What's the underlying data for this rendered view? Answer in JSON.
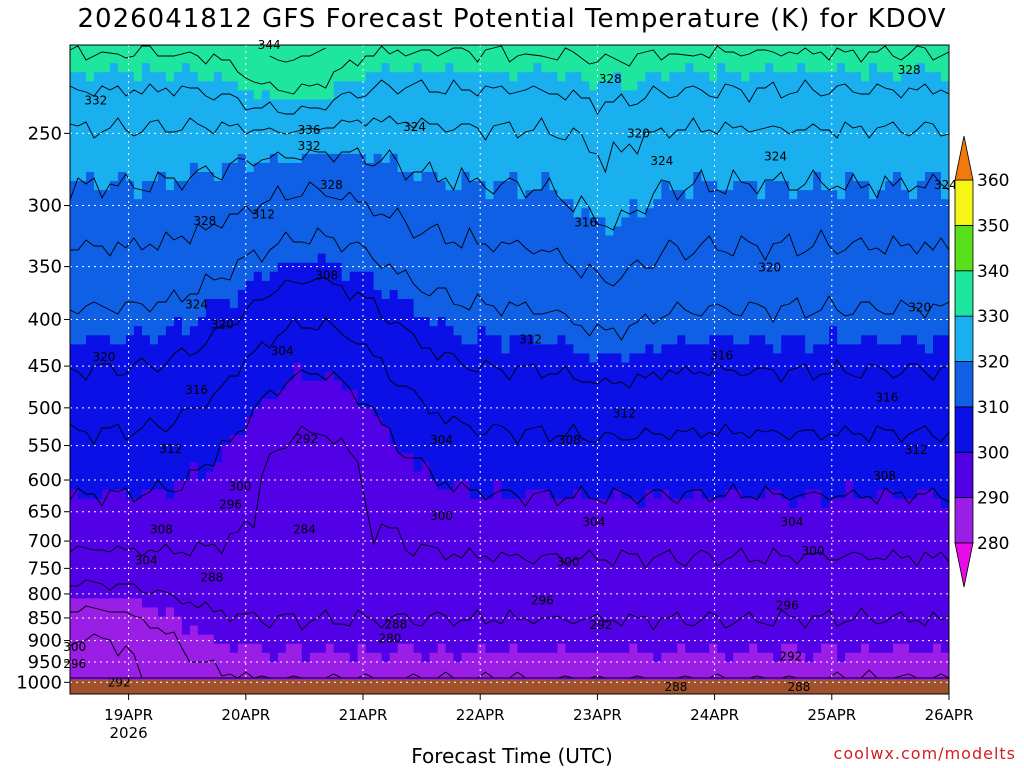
{
  "chart_data": {
    "type": "heatmap",
    "title": "2026041812 GFS Forecast Potential Temperature (K) for KDOV",
    "xlabel": "Forecast Time (UTC)",
    "ylabel": "",
    "credit": "coolwx.com/modelts",
    "x_ticks": [
      "19APR",
      "20APR",
      "21APR",
      "22APR",
      "23APR",
      "24APR",
      "25APR",
      "26APR"
    ],
    "x_year_label": "2026",
    "y_ticks": [
      250,
      300,
      350,
      400,
      450,
      500,
      550,
      600,
      650,
      700,
      750,
      800,
      850,
      900,
      950,
      1000
    ],
    "colorbar": {
      "levels": [
        280,
        290,
        300,
        310,
        320,
        330,
        340,
        350,
        360
      ],
      "colors": [
        "#e60ce6",
        "#9a1ee6",
        "#5200e6",
        "#0a10e6",
        "#1060e6",
        "#1ab0f0",
        "#1ee69e",
        "#58e01a",
        "#f5f516",
        "#f0b114",
        "#f07a0c"
      ]
    },
    "contour_labels": [
      {
        "value": 344,
        "t": 1.7,
        "p": 200
      },
      {
        "value": 336,
        "t": 2.04,
        "p": 248
      },
      {
        "value": 332,
        "t": 2.04,
        "p": 258
      },
      {
        "value": 332,
        "t": 0.22,
        "p": 230
      },
      {
        "value": 328,
        "t": 2.23,
        "p": 285
      },
      {
        "value": 328,
        "t": 1.15,
        "p": 312
      },
      {
        "value": 324,
        "t": 2.94,
        "p": 246
      },
      {
        "value": 328,
        "t": 4.61,
        "p": 218
      },
      {
        "value": 320,
        "t": 4.85,
        "p": 250
      },
      {
        "value": 324,
        "t": 5.05,
        "p": 268
      },
      {
        "value": 324,
        "t": 6.02,
        "p": 265
      },
      {
        "value": 328,
        "t": 7.16,
        "p": 213
      },
      {
        "value": 324,
        "t": 7.47,
        "p": 285
      },
      {
        "value": 316,
        "t": 4.4,
        "p": 313
      },
      {
        "value": 312,
        "t": 1.65,
        "p": 307
      },
      {
        "value": 308,
        "t": 2.19,
        "p": 358
      },
      {
        "value": 324,
        "t": 1.08,
        "p": 385
      },
      {
        "value": 320,
        "t": 1.3,
        "p": 405
      },
      {
        "value": 320,
        "t": 0.29,
        "p": 440
      },
      {
        "value": 304,
        "t": 1.81,
        "p": 433
      },
      {
        "value": 312,
        "t": 3.93,
        "p": 421
      },
      {
        "value": 316,
        "t": 1.08,
        "p": 478
      },
      {
        "value": 320,
        "t": 5.97,
        "p": 351
      },
      {
        "value": 320,
        "t": 7.25,
        "p": 388
      },
      {
        "value": 316,
        "t": 5.56,
        "p": 438
      },
      {
        "value": 316,
        "t": 6.97,
        "p": 487
      },
      {
        "value": 312,
        "t": 4.73,
        "p": 507
      },
      {
        "value": 312,
        "t": 0.86,
        "p": 555
      },
      {
        "value": 304,
        "t": 3.17,
        "p": 542
      },
      {
        "value": 308,
        "t": 4.26,
        "p": 542
      },
      {
        "value": 312,
        "t": 7.22,
        "p": 556
      },
      {
        "value": 308,
        "t": 0.78,
        "p": 680
      },
      {
        "value": 308,
        "t": 6.95,
        "p": 594
      },
      {
        "value": 292,
        "t": 2.02,
        "p": 541
      },
      {
        "value": 300,
        "t": 1.45,
        "p": 610
      },
      {
        "value": 296,
        "t": 1.37,
        "p": 638
      },
      {
        "value": 284,
        "t": 2.0,
        "p": 680
      },
      {
        "value": 300,
        "t": 3.17,
        "p": 657
      },
      {
        "value": 304,
        "t": 4.47,
        "p": 667
      },
      {
        "value": 304,
        "t": 6.16,
        "p": 667
      },
      {
        "value": 304,
        "t": 0.65,
        "p": 735
      },
      {
        "value": 288,
        "t": 1.21,
        "p": 767
      },
      {
        "value": 300,
        "t": 4.25,
        "p": 738
      },
      {
        "value": 300,
        "t": 6.34,
        "p": 718
      },
      {
        "value": 296,
        "t": 4.03,
        "p": 813
      },
      {
        "value": 296,
        "t": 6.12,
        "p": 824
      },
      {
        "value": 288,
        "t": 2.78,
        "p": 864
      },
      {
        "value": 292,
        "t": 4.53,
        "p": 865
      },
      {
        "value": 280,
        "t": 2.73,
        "p": 895
      },
      {
        "value": 300,
        "t": 0.04,
        "p": 915
      },
      {
        "value": 296,
        "t": 0.04,
        "p": 955
      },
      {
        "value": 292,
        "t": 6.15,
        "p": 937
      },
      {
        "value": 292,
        "t": 0.42,
        "p": 1000
      },
      {
        "value": 288,
        "t": 5.17,
        "p": 1012
      },
      {
        "value": 288,
        "t": 6.22,
        "p": 1012
      }
    ]
  }
}
